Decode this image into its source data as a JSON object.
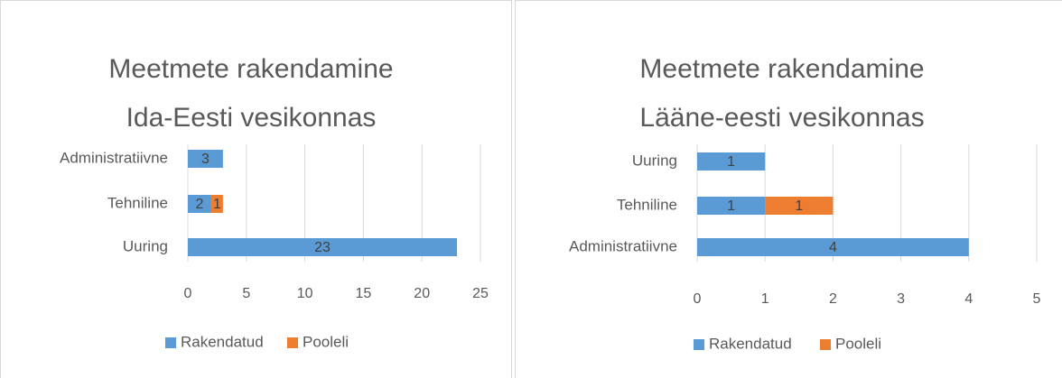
{
  "chart_data": [
    {
      "type": "bar",
      "orientation": "horizontal",
      "stacked": true,
      "title": [
        "Meetmete rakendamine",
        "Ida-Eesti vesikonnas"
      ],
      "categories": [
        "Administratiivne",
        "Tehniline",
        "Uuring"
      ],
      "series": [
        {
          "name": "Rakendatud",
          "color": "#5b9bd5",
          "values": [
            3,
            2,
            23
          ]
        },
        {
          "name": "Pooleli",
          "color": "#ed7d31",
          "values": [
            null,
            1,
            null
          ]
        }
      ],
      "xlim": [
        0,
        25
      ],
      "xticks": [
        0,
        5,
        10,
        15,
        20,
        25
      ],
      "grid": true,
      "legend": "bottom"
    },
    {
      "type": "bar",
      "orientation": "horizontal",
      "stacked": true,
      "title": [
        "Meetmete rakendamine",
        "Lääne-eesti vesikonnas"
      ],
      "categories": [
        "Uuring",
        "Tehniline",
        "Administratiivne"
      ],
      "series": [
        {
          "name": "Rakendatud",
          "color": "#5b9bd5",
          "values": [
            1,
            1,
            4
          ]
        },
        {
          "name": "Pooleli",
          "color": "#ed7d31",
          "values": [
            null,
            1,
            null
          ]
        }
      ],
      "xlim": [
        0,
        5
      ],
      "xticks": [
        0,
        1,
        2,
        3,
        4,
        5
      ],
      "grid": true,
      "legend": "bottom"
    }
  ]
}
